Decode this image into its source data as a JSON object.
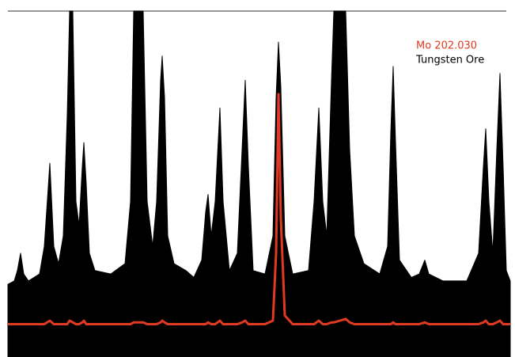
{
  "chart_data": {
    "type": "line",
    "x": [
      10,
      18,
      22,
      26,
      30,
      36,
      50,
      56,
      63,
      68,
      74,
      80,
      85,
      88,
      92,
      96,
      100,
      104,
      106,
      109,
      113,
      120,
      140,
      158,
      165,
      169,
      181,
      186,
      193,
      198,
      203,
      205,
      208,
      212,
      220,
      235,
      245,
      255,
      260,
      263,
      267,
      272,
      278,
      282,
      290,
      300,
      306,
      310,
      314,
      320,
      335,
      345,
      349,
      352,
      355,
      360,
      370,
      390,
      397,
      403,
      408,
      413,
      419,
      422,
      437,
      442,
      448,
      460,
      480,
      490,
      494,
      497,
      500,
      505,
      520,
      530,
      537,
      542,
      560,
      590,
      605,
      611,
      614,
      618,
      623,
      628,
      632,
      636,
      640,
      645
    ],
    "xlim": [
      10,
      645
    ],
    "ylim": [
      0,
      100
    ],
    "series": [
      {
        "name": "Tungsten Ore",
        "color": "#000000",
        "style": "area",
        "values": [
          21,
          22,
          25,
          30,
          24,
          22,
          24,
          32,
          56,
          32,
          27,
          35,
          70,
          100,
          100,
          45,
          38,
          55,
          62,
          50,
          30,
          25,
          24,
          27,
          45,
          100,
          100,
          45,
          32,
          45,
          80,
          87,
          75,
          35,
          27,
          25,
          23,
          28,
          42,
          47,
          35,
          45,
          72,
          45,
          25,
          30,
          60,
          80,
          55,
          25,
          24,
          35,
          75,
          91,
          78,
          35,
          24,
          25,
          45,
          72,
          45,
          35,
          80,
          100,
          100,
          60,
          35,
          27,
          24,
          32,
          65,
          84,
          62,
          28,
          23,
          24,
          28,
          24,
          22,
          22,
          30,
          55,
          66,
          45,
          30,
          60,
          82,
          55,
          25,
          22
        ]
      },
      {
        "name": "Mo 202.030",
        "color": "#e03a22",
        "style": "line",
        "values": [
          9.5,
          9.5,
          9.5,
          9.5,
          9.5,
          9.5,
          9.5,
          9.5,
          10.5,
          9.5,
          9.5,
          9.5,
          9.5,
          10.5,
          10,
          9.5,
          9.5,
          10,
          10.5,
          9.5,
          9.5,
          9.5,
          9.5,
          9.5,
          9.5,
          10,
          10,
          9.5,
          9.5,
          9.5,
          10,
          10.5,
          10,
          9.5,
          9.5,
          9.5,
          9.5,
          9.5,
          9.5,
          10,
          9.5,
          9.5,
          10.5,
          9.5,
          9.5,
          9.5,
          10,
          10.5,
          9.5,
          9.5,
          9.5,
          10.5,
          30,
          76,
          40,
          12,
          9.5,
          9.5,
          9.5,
          10.5,
          9.5,
          9.5,
          10,
          10,
          11,
          10,
          9.5,
          9.5,
          9.5,
          9.5,
          9.5,
          10,
          9.5,
          9.5,
          9.5,
          9.5,
          10,
          9.5,
          9.5,
          9.5,
          9.5,
          10,
          10.5,
          9.5,
          9.5,
          10,
          10.5,
          9.5,
          9.5,
          9.5
        ]
      }
    ]
  }
}
